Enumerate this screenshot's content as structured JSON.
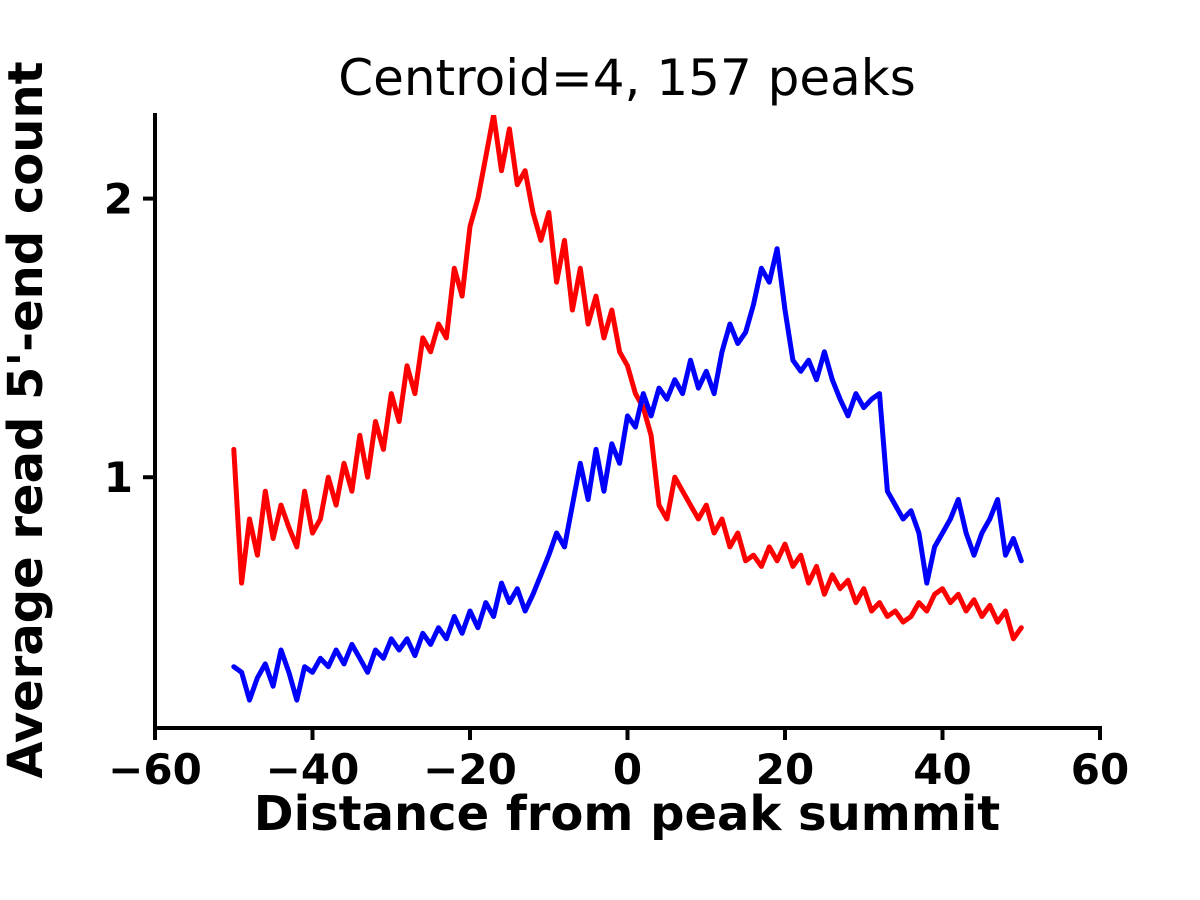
{
  "chart_data": {
    "type": "line",
    "title": "Centroid=4, 157 peaks",
    "xlabel": "Distance from peak summit",
    "ylabel": "Average read 5'-end count",
    "xlim": [
      -60,
      60
    ],
    "ylim": [
      0.1,
      2.3
    ],
    "grid": false,
    "legend": null,
    "line_width": 5,
    "xticks": [
      -60,
      -40,
      -20,
      0,
      20,
      40,
      60
    ],
    "xtick_labels": [
      "−60",
      "−40",
      "−20",
      "0",
      "20",
      "40",
      "60"
    ],
    "yticks": [
      1,
      2
    ],
    "ytick_labels": [
      "1",
      "2"
    ],
    "x": [
      -50,
      -49,
      -48,
      -47,
      -46,
      -45,
      -44,
      -43,
      -42,
      -41,
      -40,
      -39,
      -38,
      -37,
      -36,
      -35,
      -34,
      -33,
      -32,
      -31,
      -30,
      -29,
      -28,
      -27,
      -26,
      -25,
      -24,
      -23,
      -22,
      -21,
      -20,
      -19,
      -18,
      -17,
      -16,
      -15,
      -14,
      -13,
      -12,
      -11,
      -10,
      -9,
      -8,
      -7,
      -6,
      -5,
      -4,
      -3,
      -2,
      -1,
      0,
      1,
      2,
      3,
      4,
      5,
      6,
      7,
      8,
      9,
      10,
      11,
      12,
      13,
      14,
      15,
      16,
      17,
      18,
      19,
      20,
      21,
      22,
      23,
      24,
      25,
      26,
      27,
      28,
      29,
      30,
      31,
      32,
      33,
      34,
      35,
      36,
      37,
      38,
      39,
      40,
      41,
      42,
      43,
      44,
      45,
      46,
      47,
      48,
      49,
      50
    ],
    "series": [
      {
        "name": "red-line",
        "color": "#ff0000",
        "values": [
          1.1,
          0.62,
          0.85,
          0.72,
          0.95,
          0.78,
          0.9,
          0.82,
          0.75,
          0.95,
          0.8,
          0.85,
          1.0,
          0.9,
          1.05,
          0.95,
          1.15,
          1.0,
          1.2,
          1.1,
          1.3,
          1.2,
          1.4,
          1.3,
          1.5,
          1.45,
          1.55,
          1.5,
          1.75,
          1.65,
          1.9,
          2.0,
          2.15,
          2.3,
          2.1,
          2.25,
          2.05,
          2.1,
          1.95,
          1.85,
          1.95,
          1.7,
          1.85,
          1.6,
          1.75,
          1.55,
          1.65,
          1.5,
          1.6,
          1.45,
          1.4,
          1.3,
          1.25,
          1.15,
          0.9,
          0.85,
          1.0,
          0.95,
          0.9,
          0.85,
          0.9,
          0.8,
          0.85,
          0.75,
          0.8,
          0.7,
          0.72,
          0.68,
          0.75,
          0.7,
          0.76,
          0.68,
          0.72,
          0.62,
          0.68,
          0.58,
          0.65,
          0.6,
          0.63,
          0.55,
          0.6,
          0.52,
          0.55,
          0.5,
          0.52,
          0.48,
          0.5,
          0.55,
          0.52,
          0.58,
          0.6,
          0.55,
          0.58,
          0.52,
          0.56,
          0.5,
          0.54,
          0.48,
          0.52,
          0.42,
          0.46
        ]
      },
      {
        "name": "blue-line",
        "color": "#0000ff",
        "values": [
          0.32,
          0.3,
          0.2,
          0.28,
          0.33,
          0.25,
          0.38,
          0.3,
          0.2,
          0.32,
          0.3,
          0.35,
          0.32,
          0.38,
          0.33,
          0.4,
          0.35,
          0.3,
          0.38,
          0.35,
          0.42,
          0.38,
          0.42,
          0.36,
          0.44,
          0.4,
          0.46,
          0.42,
          0.5,
          0.44,
          0.52,
          0.46,
          0.55,
          0.5,
          0.62,
          0.55,
          0.6,
          0.52,
          0.58,
          0.65,
          0.72,
          0.8,
          0.75,
          0.9,
          1.05,
          0.92,
          1.1,
          0.95,
          1.12,
          1.05,
          1.22,
          1.18,
          1.3,
          1.22,
          1.32,
          1.28,
          1.35,
          1.3,
          1.42,
          1.32,
          1.38,
          1.3,
          1.45,
          1.55,
          1.48,
          1.52,
          1.62,
          1.75,
          1.7,
          1.82,
          1.6,
          1.42,
          1.38,
          1.42,
          1.35,
          1.45,
          1.35,
          1.28,
          1.22,
          1.3,
          1.25,
          1.28,
          1.3,
          0.95,
          0.9,
          0.85,
          0.88,
          0.8,
          0.62,
          0.75,
          0.8,
          0.85,
          0.92,
          0.8,
          0.72,
          0.8,
          0.85,
          0.92,
          0.72,
          0.78,
          0.7
        ]
      }
    ]
  }
}
